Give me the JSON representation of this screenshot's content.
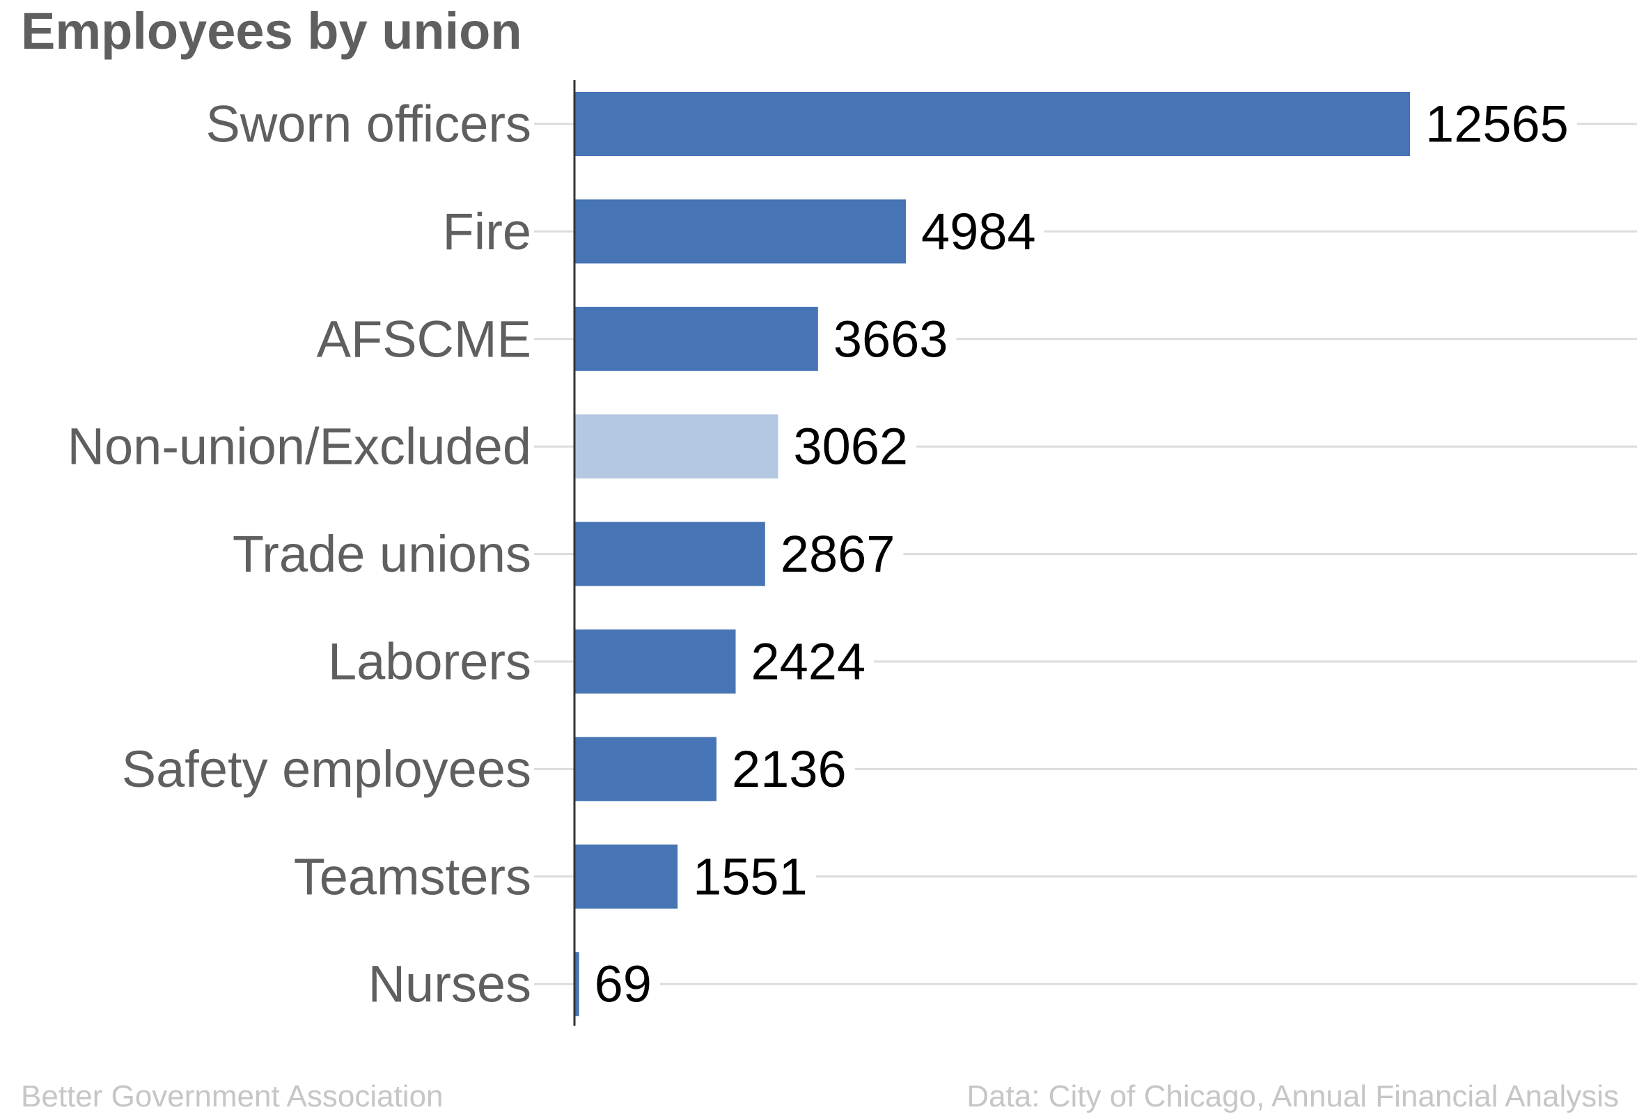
{
  "title": "Employees by union",
  "credit": "Better Government Association",
  "source": "Data: City of Chicago, Annual Financial Analysis",
  "colors": {
    "bar": "#4674b4",
    "bar_highlight": "#b4c8e1",
    "gridline": "#dcdcdc",
    "axis": "#333333",
    "category_label": "#5f5f5f",
    "value_label": "#000000"
  },
  "chart_data": {
    "type": "bar",
    "orientation": "horizontal",
    "categories": [
      "Sworn officers",
      "Fire",
      "AFSCME",
      "Non-union/Excluded",
      "Trade unions",
      "Laborers",
      "Safety employees",
      "Teamsters",
      "Nurses"
    ],
    "values": [
      12565,
      4984,
      3663,
      3062,
      2867,
      2424,
      2136,
      1551,
      69
    ],
    "highlighted": [
      "Non-union/Excluded"
    ],
    "xlim": [
      0,
      12565
    ],
    "grid": true,
    "data_labels": true
  }
}
